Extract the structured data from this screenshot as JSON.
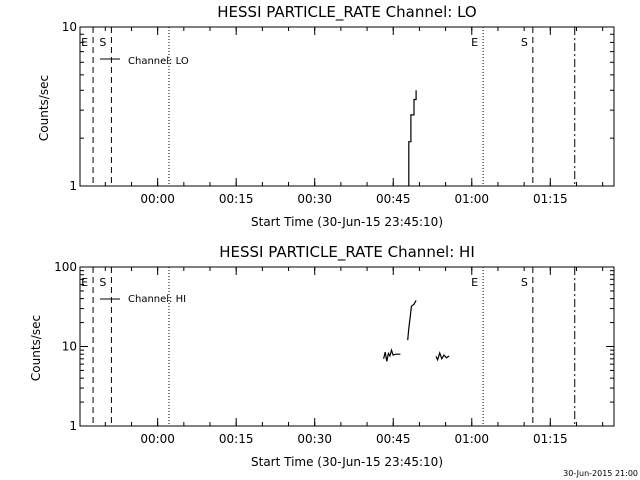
{
  "chart_data": [
    {
      "type": "line",
      "title": "HESSI PARTICLE_RATE Channel: LO",
      "xlabel": "Start Time (30-Jun-15 23:45:10)",
      "ylabel": "Counts/sec",
      "yscale": "log",
      "ylim": [
        1,
        10
      ],
      "xlim_minutes_from_start": [
        0,
        102
      ],
      "x_ticks": [
        "00:00",
        "00:15",
        "00:30",
        "00:45",
        "01:00",
        "01:15"
      ],
      "y_ticks": [
        "1",
        "10"
      ],
      "legend": "Channel: LO",
      "legend_position": "top-left",
      "markers": [
        {
          "label": "E",
          "style": "dashed",
          "minute": 2.5
        },
        {
          "label": "S",
          "style": "dashed",
          "minute": 6.0
        },
        {
          "label": "",
          "style": "dotted",
          "minute": 17.0
        },
        {
          "label": "E",
          "style": "dotted",
          "minute": 77.0
        },
        {
          "label": "S",
          "style": "dashed",
          "minute": 86.5
        },
        {
          "label": "",
          "style": "dashdot",
          "minute": 94.5
        }
      ],
      "series": [
        {
          "name": "Channel: LO",
          "segments": [
            [
              [
                62.8,
                1.0
              ],
              [
                62.8,
                1.9
              ],
              [
                63.2,
                1.9
              ],
              [
                63.2,
                2.8
              ],
              [
                63.8,
                2.8
              ],
              [
                63.8,
                3.5
              ],
              [
                64.2,
                3.5
              ],
              [
                64.2,
                4.0
              ]
            ]
          ]
        }
      ]
    },
    {
      "type": "line",
      "title": "HESSI PARTICLE_RATE Channel: HI",
      "xlabel": "Start Time (30-Jun-15 23:45:10)",
      "ylabel": "Counts/sec",
      "yscale": "log",
      "ylim": [
        1,
        100
      ],
      "xlim_minutes_from_start": [
        0,
        102
      ],
      "x_ticks": [
        "00:00",
        "00:15",
        "00:30",
        "00:45",
        "01:00",
        "01:15"
      ],
      "y_ticks": [
        "1",
        "10",
        "100"
      ],
      "legend": "Channel: HI",
      "legend_position": "top-left",
      "markers": [
        {
          "label": "E",
          "style": "dashed",
          "minute": 2.5
        },
        {
          "label": "S",
          "style": "dashed",
          "minute": 6.0
        },
        {
          "label": "",
          "style": "dotted",
          "minute": 17.0
        },
        {
          "label": "E",
          "style": "dotted",
          "minute": 77.0
        },
        {
          "label": "S",
          "style": "dashed",
          "minute": 86.5
        },
        {
          "label": "",
          "style": "dashdot",
          "minute": 94.5
        }
      ],
      "series": [
        {
          "name": "Channel: HI",
          "segments": [
            [
              [
                58.0,
                7.0
              ],
              [
                58.3,
                8.5
              ],
              [
                58.6,
                6.5
              ],
              [
                58.9,
                8.2
              ],
              [
                59.2,
                7.6
              ],
              [
                59.5,
                9.0
              ],
              [
                59.8,
                7.8
              ],
              [
                60.2,
                8.0
              ],
              [
                61.2,
                8.0
              ]
            ],
            [
              [
                62.6,
                12.0
              ],
              [
                62.8,
                17.0
              ],
              [
                63.1,
                24.0
              ],
              [
                63.3,
                32.0
              ],
              [
                63.8,
                34.0
              ],
              [
                64.2,
                38.0
              ]
            ],
            [
              [
                68.0,
                7.5
              ],
              [
                68.3,
                6.8
              ],
              [
                68.7,
                8.3
              ],
              [
                69.1,
                7.0
              ],
              [
                69.5,
                7.8
              ],
              [
                70.0,
                7.2
              ],
              [
                70.5,
                7.6
              ]
            ]
          ]
        }
      ]
    }
  ],
  "footer": {
    "timestamp": "30-Jun-2015 21:00"
  }
}
